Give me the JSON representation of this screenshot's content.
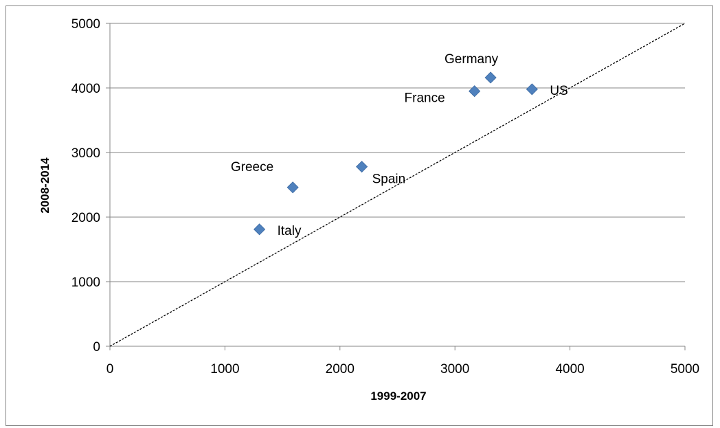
{
  "chart_data": {
    "type": "scatter",
    "title": "",
    "xlabel": "1999-2007",
    "ylabel": "2008-2014",
    "xlim": [
      0,
      5000
    ],
    "ylim": [
      0,
      5000
    ],
    "xticks": [
      "0",
      "1000",
      "2000",
      "3000",
      "4000",
      "5000"
    ],
    "yticks": [
      "0",
      "1000",
      "2000",
      "3000",
      "4000",
      "5000"
    ],
    "grid": "horizontal",
    "legend": "none",
    "marker_color": "#4F81BD",
    "reference_line": {
      "style": "dashed",
      "from": [
        0,
        0
      ],
      "to": [
        5000,
        5000
      ]
    },
    "points": [
      {
        "label": "Italy",
        "x": 1300,
        "y": 1810,
        "label_side": "right"
      },
      {
        "label": "Greece",
        "x": 1590,
        "y": 2460,
        "label_side": "upper-left"
      },
      {
        "label": "Spain",
        "x": 2190,
        "y": 2780,
        "label_side": "lower-right"
      },
      {
        "label": "France",
        "x": 3170,
        "y": 3950,
        "label_side": "left"
      },
      {
        "label": "Germany",
        "x": 3310,
        "y": 4160,
        "label_side": "above"
      },
      {
        "label": "US",
        "x": 3670,
        "y": 3980,
        "label_side": "right"
      }
    ]
  }
}
